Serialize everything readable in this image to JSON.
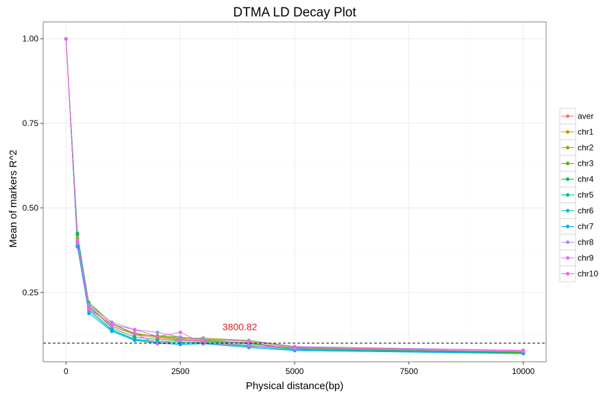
{
  "chart_data": {
    "type": "line",
    "title": "DTMA LD Decay Plot",
    "xlabel": "Physical distance(bp)",
    "ylabel": "Mean of markers R^2",
    "xlim": [
      -500,
      10500
    ],
    "ylim": [
      0.045,
      1.05
    ],
    "xticks": [
      0,
      2500,
      5000,
      7500,
      10000
    ],
    "xtick_labels": [
      "0",
      "2500",
      "5000",
      "7500",
      "10000"
    ],
    "yticks": [
      0.25,
      0.5,
      0.75,
      1.0
    ],
    "ytick_labels": [
      "0.25",
      "0.50",
      "0.75",
      "1.00"
    ],
    "grid": true,
    "legend_position": "right",
    "x": [
      0,
      250,
      500,
      1000,
      1500,
      2000,
      2500,
      3000,
      4000,
      5000,
      10000
    ],
    "series": [
      {
        "name": "aver",
        "color": "#F8766D",
        "values": [
          1.0,
          0.4,
          0.205,
          0.15,
          0.125,
          0.115,
          0.11,
          0.108,
          0.1,
          0.085,
          0.075
        ]
      },
      {
        "name": "chr1",
        "color": "#C49A00",
        "values": [
          1.0,
          0.405,
          0.215,
          0.155,
          0.13,
          0.118,
          0.112,
          0.112,
          0.105,
          0.088,
          0.074
        ]
      },
      {
        "name": "chr2",
        "color": "#99A800",
        "values": [
          1.0,
          0.41,
          0.21,
          0.15,
          0.128,
          0.12,
          0.115,
          0.115,
          0.108,
          0.09,
          0.073
        ]
      },
      {
        "name": "chr3",
        "color": "#53B400",
        "values": [
          1.0,
          0.42,
          0.22,
          0.16,
          0.125,
          0.122,
          0.118,
          0.11,
          0.1,
          0.086,
          0.072
        ]
      },
      {
        "name": "chr4",
        "color": "#00BC56",
        "values": [
          1.0,
          0.425,
          0.21,
          0.145,
          0.118,
          0.11,
          0.108,
          0.105,
          0.098,
          0.084,
          0.071
        ]
      },
      {
        "name": "chr5",
        "color": "#00C094",
        "values": [
          1.0,
          0.39,
          0.2,
          0.14,
          0.112,
          0.105,
          0.104,
          0.102,
          0.094,
          0.082,
          0.07
        ]
      },
      {
        "name": "chr6",
        "color": "#00BFC4",
        "values": [
          1.0,
          0.385,
          0.195,
          0.138,
          0.11,
          0.102,
          0.1,
          0.1,
          0.09,
          0.08,
          0.07
        ]
      },
      {
        "name": "chr7",
        "color": "#00A9FF",
        "values": [
          1.0,
          0.385,
          0.188,
          0.135,
          0.108,
          0.1,
          0.096,
          0.098,
          0.087,
          0.078,
          0.069
        ]
      },
      {
        "name": "chr8",
        "color": "#A58AFF",
        "values": [
          1.0,
          0.405,
          0.215,
          0.162,
          0.14,
          0.132,
          0.118,
          0.112,
          0.107,
          0.09,
          0.079
        ]
      },
      {
        "name": "chr9",
        "color": "#DF70F8",
        "values": [
          1.0,
          0.395,
          0.205,
          0.15,
          0.128,
          0.098,
          0.108,
          0.106,
          0.102,
          0.084,
          0.076
        ]
      },
      {
        "name": "chr10",
        "color": "#FB61D7",
        "values": [
          1.0,
          0.4,
          0.2,
          0.155,
          0.14,
          0.12,
          0.132,
          0.1,
          0.092,
          0.088,
          0.078
        ]
      }
    ],
    "reference_line": {
      "y": 0.1,
      "style": "dashed",
      "color": "#000000"
    },
    "annotation": {
      "text": "3800.82",
      "x": 3800.82,
      "y": 0.138,
      "color": "#E41A1C"
    }
  }
}
